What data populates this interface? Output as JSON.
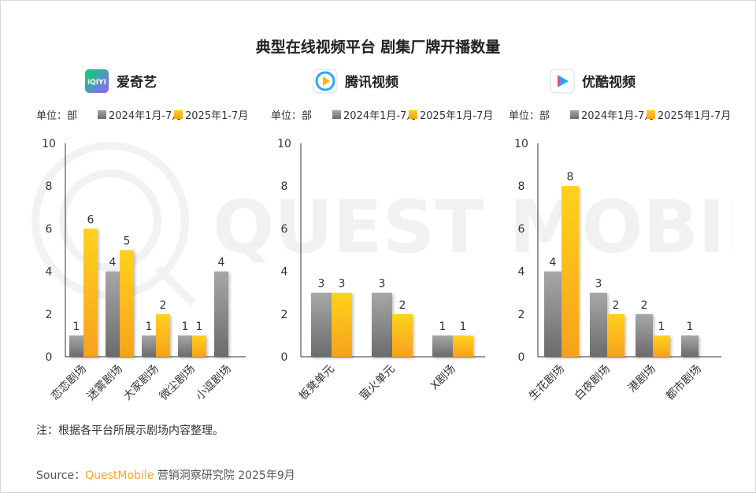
{
  "title": "典型在线视频平台 剧集厂牌开播数量",
  "colors": {
    "bar2024_top": "#a7a7a7",
    "bar2024_bottom": "#6b6b6b",
    "bar2025_top": "#ffd21f",
    "bar2025_bottom": "#f6a21b",
    "axis": "#333333"
  },
  "watermark": "QUEST MOBILE",
  "note": "注：根据各平台所展示剧场内容整理。",
  "source": {
    "prefix": "Source：",
    "brand": "QuestMobile",
    "suffix": " 营销洞察研究院 2025年9月"
  },
  "chart_data": [
    {
      "type": "bar",
      "platform": "爱奇艺",
      "logo_icon": "iqiyi-logo-icon",
      "logo_text": "iQIYI",
      "unit_label": "单位：部",
      "legend": [
        "2024年1月-7月",
        "2025年1-7月"
      ],
      "categories": [
        "恋恋剧场",
        "迷雾剧场",
        "大家剧场",
        "微尘剧场",
        "小逗剧场"
      ],
      "series": [
        {
          "name": "2024年1月-7月",
          "values": [
            1,
            4,
            1,
            1,
            4
          ]
        },
        {
          "name": "2025年1-7月",
          "values": [
            6,
            5,
            2,
            1,
            null
          ]
        }
      ],
      "ylim": [
        0,
        10
      ],
      "yticks": [
        "0",
        "2",
        "4",
        "6",
        "8",
        "10"
      ]
    },
    {
      "type": "bar",
      "platform": "腾讯视频",
      "logo_icon": "tencent-video-logo-icon",
      "unit_label": "单位：部",
      "legend": [
        "2024年1月-7月",
        "2025年1月-7月"
      ],
      "categories": [
        "板凳单元",
        "萤火单元",
        "X剧场"
      ],
      "series": [
        {
          "name": "2024年1月-7月",
          "values": [
            3,
            3,
            1
          ]
        },
        {
          "name": "2025年1月-7月",
          "values": [
            3,
            2,
            1
          ]
        }
      ],
      "ylim": [
        0,
        10
      ],
      "yticks": [
        "0",
        "2",
        "4",
        "6",
        "8",
        "10"
      ]
    },
    {
      "type": "bar",
      "platform": "优酷视频",
      "logo_icon": "youku-logo-icon",
      "unit_label": "单位：部",
      "legend": [
        "2024年1月-7月",
        "2025年1月-7月"
      ],
      "categories": [
        "生花剧场",
        "白夜剧场",
        "港剧场",
        "都市剧场"
      ],
      "series": [
        {
          "name": "2024年1月-7月",
          "values": [
            4,
            3,
            2,
            1
          ]
        },
        {
          "name": "2025年1月-7月",
          "values": [
            8,
            2,
            1,
            null
          ]
        }
      ],
      "ylim": [
        0,
        10
      ],
      "yticks": [
        "0",
        "2",
        "4",
        "6",
        "8",
        "10"
      ]
    }
  ]
}
